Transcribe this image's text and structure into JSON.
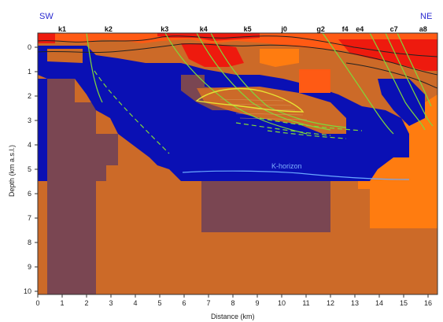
{
  "figure": {
    "direction_left": "SW",
    "direction_right": "NE",
    "x_axis_label": "Distance (km)",
    "y_axis_label": "Depth (km a.s.l.)",
    "x_ticks": [
      "0",
      "1",
      "2",
      "3",
      "4",
      "5",
      "6",
      "7",
      "8",
      "9",
      "10",
      "11",
      "12",
      "13",
      "14",
      "15",
      "16"
    ],
    "y_ticks": [
      "0",
      "1",
      "2",
      "3",
      "4",
      "5",
      "6",
      "7",
      "8",
      "9",
      "10"
    ],
    "horizon_label": "K-horizon",
    "sites": [
      {
        "label": "k1",
        "x": 1.0
      },
      {
        "label": "k2",
        "x": 2.9
      },
      {
        "label": "k3",
        "x": 5.2
      },
      {
        "label": "k4",
        "x": 6.8
      },
      {
        "label": "k5",
        "x": 8.6
      },
      {
        "label": "j0",
        "x": 10.1
      },
      {
        "label": "g2",
        "x": 11.6
      },
      {
        "label": "f4",
        "x": 12.6
      },
      {
        "label": "e4",
        "x": 13.2
      },
      {
        "label": "c7",
        "x": 14.6
      },
      {
        "label": "a8",
        "x": 15.8
      }
    ],
    "colors": {
      "red": "#ee1a0e",
      "orange_red": "#ff5a14",
      "orange": "#ff7c10",
      "dark_orange": "#cc6a28",
      "mauve": "#7a4652",
      "blue": "#0a10b4",
      "fault": "#7fd83a",
      "horizon": "#6aa8ff",
      "surface": "#222222"
    }
  }
}
